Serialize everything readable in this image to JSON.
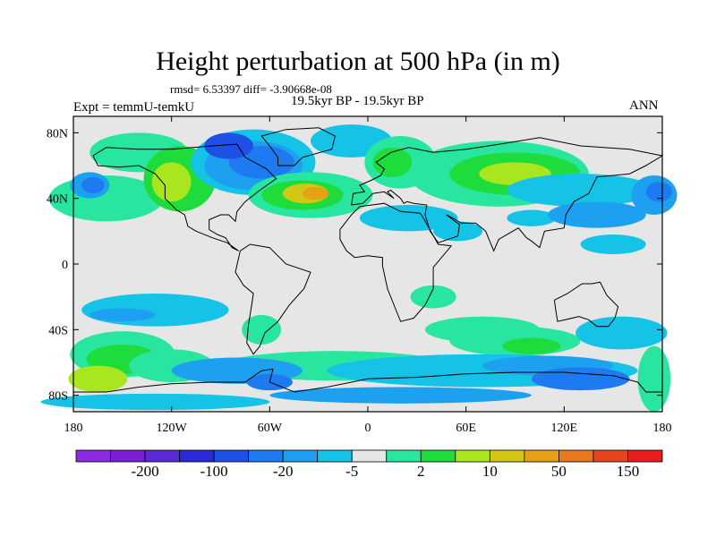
{
  "title": "Height perturbation at 500 hPa (in m)",
  "rmsd_line": "rmsd= 6.53397 diff= -3.90668e-08",
  "left_label": "Expt = temmU-temkU",
  "center_label": "19.5kyr BP - 19.5kyr BP",
  "right_label": "ANN",
  "colors": {
    "missing_gray": "#e6e6e6",
    "palette": [
      "#8a2be2",
      "#7a1fd6",
      "#5a2ad6",
      "#2a2ad8",
      "#1e50e6",
      "#1e7af0",
      "#1ea0f0",
      "#14c3e6",
      "#e6e6e6",
      "#28e6a0",
      "#1edc3c",
      "#aae61e",
      "#d2c814",
      "#e6a014",
      "#e6781e",
      "#e6461e",
      "#e61e1e"
    ]
  },
  "chart_data": {
    "type": "heatmap",
    "projection": "cylindrical-equidistant",
    "variable": "Height perturbation at 500 hPa",
    "units": "m",
    "lon_range": [
      -180,
      180
    ],
    "lat_range": [
      -90,
      90
    ],
    "x_ticks": [
      {
        "value": -180,
        "label": "180"
      },
      {
        "value": -120,
        "label": "120W"
      },
      {
        "value": -60,
        "label": "60W"
      },
      {
        "value": 0,
        "label": "0"
      },
      {
        "value": 60,
        "label": "60E"
      },
      {
        "value": 120,
        "label": "120E"
      },
      {
        "value": 180,
        "label": "180"
      }
    ],
    "y_ticks": [
      {
        "value": 80,
        "label": "80N"
      },
      {
        "value": 40,
        "label": "40N"
      },
      {
        "value": 0,
        "label": "0"
      },
      {
        "value": -40,
        "label": "40S"
      },
      {
        "value": -80,
        "label": "80S"
      }
    ],
    "contour_levels": [
      -300,
      -200,
      -150,
      -100,
      -50,
      -20,
      -10,
      -5,
      -2,
      2,
      5,
      10,
      20,
      50,
      100,
      150,
      200
    ],
    "colorbar_labels": [
      "-200",
      "-100",
      "-20",
      "-5",
      "2",
      "10",
      "50",
      "150"
    ]
  }
}
